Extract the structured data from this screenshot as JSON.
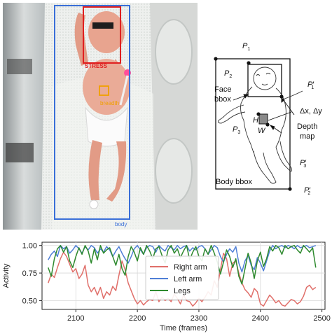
{
  "photo": {
    "face_label": "STRESS",
    "breadth_label": "breadth",
    "body_label": "body",
    "colors": {
      "face_box": "#e02020",
      "body_box": "#3a6fd8",
      "breadth_box": "#f0a000"
    }
  },
  "diagram": {
    "p1": "P",
    "p1_sub": "1",
    "p2": "P",
    "p2_sub": "2",
    "p1_prime": "P",
    "p1_prime_sub": "1",
    "p2_prime": "P",
    "p2_prime_sub": "2",
    "p3": "P",
    "p3_sub": "3",
    "p3_prime": "P",
    "p3_prime_sub": "3",
    "prime_mark": "′",
    "face_bbox_line1": "Face",
    "face_bbox_line2": "bbox",
    "delta": "Δx, Δy",
    "h": "H",
    "w": "W",
    "depth_line1": "Depth",
    "depth_line2": "map",
    "body_bbox": "Body bbox"
  },
  "chart_data": {
    "type": "line",
    "xlabel": "Time (frames)",
    "ylabel": "Activity",
    "xlim": [
      2045,
      2505
    ],
    "ylim": [
      0.42,
      1.03
    ],
    "xticks": [
      2100,
      2200,
      2300,
      2400,
      2500
    ],
    "yticks": [
      0.5,
      0.75,
      1.0
    ],
    "ytick_labels": [
      "0.50",
      "0.75",
      "1.00"
    ],
    "grid": true,
    "legend_position": "center-right",
    "series": [
      {
        "name": "Right arm",
        "color": "#e06f6a",
        "x": [
          2055,
          2060,
          2065,
          2070,
          2075,
          2080,
          2085,
          2090,
          2095,
          2100,
          2105,
          2110,
          2115,
          2120,
          2125,
          2130,
          2135,
          2140,
          2145,
          2150,
          2155,
          2160,
          2165,
          2170,
          2175,
          2180,
          2185,
          2190,
          2195,
          2200,
          2205,
          2210,
          2215,
          2220,
          2225,
          2230,
          2235,
          2240,
          2245,
          2250,
          2255,
          2260,
          2265,
          2270,
          2275,
          2280,
          2285,
          2290,
          2295,
          2300,
          2305,
          2310,
          2315,
          2320,
          2325,
          2330,
          2335,
          2340,
          2345,
          2350,
          2355,
          2360,
          2365,
          2370,
          2375,
          2380,
          2385,
          2390,
          2395,
          2400,
          2405,
          2410,
          2415,
          2420,
          2425,
          2430,
          2435,
          2440,
          2445,
          2450,
          2455,
          2460,
          2465,
          2470,
          2475,
          2480,
          2485,
          2490
        ],
        "y": [
          0.66,
          0.74,
          0.71,
          0.8,
          0.88,
          0.94,
          0.9,
          0.83,
          0.76,
          0.79,
          0.7,
          0.74,
          0.82,
          0.64,
          0.58,
          0.62,
          0.55,
          0.62,
          0.52,
          0.58,
          0.55,
          0.63,
          0.59,
          0.73,
          0.86,
          0.78,
          0.66,
          0.59,
          0.52,
          0.47,
          0.5,
          0.46,
          0.49,
          0.51,
          0.5,
          0.58,
          0.49,
          0.53,
          0.5,
          0.52,
          0.49,
          0.56,
          0.52,
          0.47,
          0.55,
          0.5,
          0.49,
          0.45,
          0.48,
          0.52,
          0.49,
          0.53,
          0.58,
          0.55,
          0.68,
          0.62,
          0.78,
          0.93,
          0.88,
          0.72,
          0.84,
          0.86,
          0.75,
          0.66,
          0.6,
          0.57,
          0.53,
          0.61,
          0.58,
          0.47,
          0.45,
          0.5,
          0.55,
          0.52,
          0.48,
          0.5,
          0.46,
          0.45,
          0.48,
          0.51,
          0.5,
          0.47,
          0.49,
          0.54,
          0.62,
          0.64,
          0.6,
          0.62
        ]
      },
      {
        "name": "Left arm",
        "color": "#4f7fd6",
        "x": [
          2055,
          2060,
          2065,
          2070,
          2075,
          2080,
          2085,
          2090,
          2095,
          2100,
          2105,
          2110,
          2115,
          2120,
          2125,
          2130,
          2135,
          2140,
          2145,
          2150,
          2155,
          2160,
          2165,
          2170,
          2175,
          2180,
          2185,
          2190,
          2195,
          2200,
          2205,
          2210,
          2215,
          2220,
          2225,
          2230,
          2235,
          2240,
          2245,
          2250,
          2255,
          2260,
          2265,
          2270,
          2275,
          2280,
          2285,
          2290,
          2295,
          2300,
          2305,
          2310,
          2315,
          2320,
          2325,
          2330,
          2335,
          2340,
          2345,
          2350,
          2355,
          2360,
          2365,
          2370,
          2375,
          2380,
          2385,
          2390,
          2395,
          2400,
          2405,
          2410,
          2415,
          2420,
          2425,
          2430,
          2435,
          2440,
          2445,
          2450,
          2455,
          2460,
          2465,
          2470,
          2475,
          2480,
          2485,
          2490
        ],
        "y": [
          0.87,
          0.92,
          0.95,
          0.9,
          1.0,
          0.97,
          0.99,
          0.93,
          0.96,
          1.0,
          0.97,
          0.93,
          0.99,
          0.96,
          1.0,
          0.98,
          0.93,
          0.97,
          0.94,
          0.99,
          0.96,
          0.9,
          0.95,
          0.99,
          0.93,
          0.88,
          0.84,
          0.9,
          0.97,
          1.0,
          0.96,
          0.92,
          0.98,
          1.0,
          0.99,
          0.94,
          1.0,
          0.97,
          0.95,
          1.0,
          0.98,
          0.96,
          1.0,
          0.97,
          0.99,
          1.0,
          0.95,
          0.98,
          0.96,
          0.99,
          1.0,
          0.97,
          0.92,
          0.96,
          1.0,
          0.98,
          0.9,
          0.85,
          0.92,
          0.97,
          0.94,
          0.99,
          0.84,
          0.76,
          0.86,
          0.91,
          0.82,
          0.78,
          0.89,
          0.84,
          0.77,
          0.86,
          0.95,
          1.0,
          0.97,
          0.99,
          1.0,
          0.98,
          1.0,
          0.99,
          0.97,
          1.0,
          0.98,
          0.99,
          1.0,
          0.98,
          0.99,
          1.0
        ]
      },
      {
        "name": "Legs",
        "color": "#2e8a2e",
        "x": [
          2055,
          2060,
          2065,
          2070,
          2075,
          2080,
          2085,
          2090,
          2095,
          2100,
          2105,
          2110,
          2115,
          2120,
          2125,
          2130,
          2135,
          2140,
          2145,
          2150,
          2155,
          2160,
          2165,
          2170,
          2175,
          2180,
          2185,
          2190,
          2195,
          2200,
          2205,
          2210,
          2215,
          2220,
          2225,
          2230,
          2235,
          2240,
          2245,
          2250,
          2255,
          2260,
          2265,
          2270,
          2275,
          2280,
          2285,
          2290,
          2295,
          2300,
          2305,
          2310,
          2315,
          2320,
          2325,
          2330,
          2335,
          2340,
          2345,
          2350,
          2355,
          2360,
          2365,
          2370,
          2375,
          2380,
          2385,
          2390,
          2395,
          2400,
          2405,
          2410,
          2415,
          2420,
          2425,
          2430,
          2435,
          2440,
          2445,
          2450,
          2455,
          2460,
          2465,
          2470,
          2475,
          2480,
          2485,
          2490
        ],
        "y": [
          0.8,
          0.72,
          0.88,
          0.97,
          1.0,
          0.94,
          0.99,
          0.86,
          0.8,
          0.9,
          0.98,
          0.92,
          1.0,
          0.95,
          0.84,
          0.97,
          0.87,
          1.0,
          0.93,
          0.96,
          0.98,
          0.9,
          0.82,
          0.92,
          0.79,
          0.73,
          0.9,
          0.99,
          0.94,
          0.86,
          0.98,
          0.92,
          1.0,
          0.95,
          0.88,
          0.97,
          0.99,
          0.91,
          0.84,
          0.96,
          1.0,
          0.93,
          0.97,
          0.89,
          0.95,
          1.0,
          0.87,
          0.94,
          0.99,
          0.9,
          0.86,
          0.97,
          0.92,
          1.0,
          0.93,
          0.85,
          0.74,
          0.85,
          0.96,
          0.9,
          0.8,
          0.88,
          0.72,
          0.65,
          0.79,
          0.93,
          0.84,
          0.7,
          0.86,
          0.94,
          0.81,
          0.88,
          0.99,
          0.95,
          1.0,
          0.98,
          0.92,
          1.0,
          0.97,
          0.99,
          1.0,
          0.96,
          0.93,
          1.0,
          0.97,
          0.94,
          0.98,
          0.8
        ]
      }
    ]
  }
}
